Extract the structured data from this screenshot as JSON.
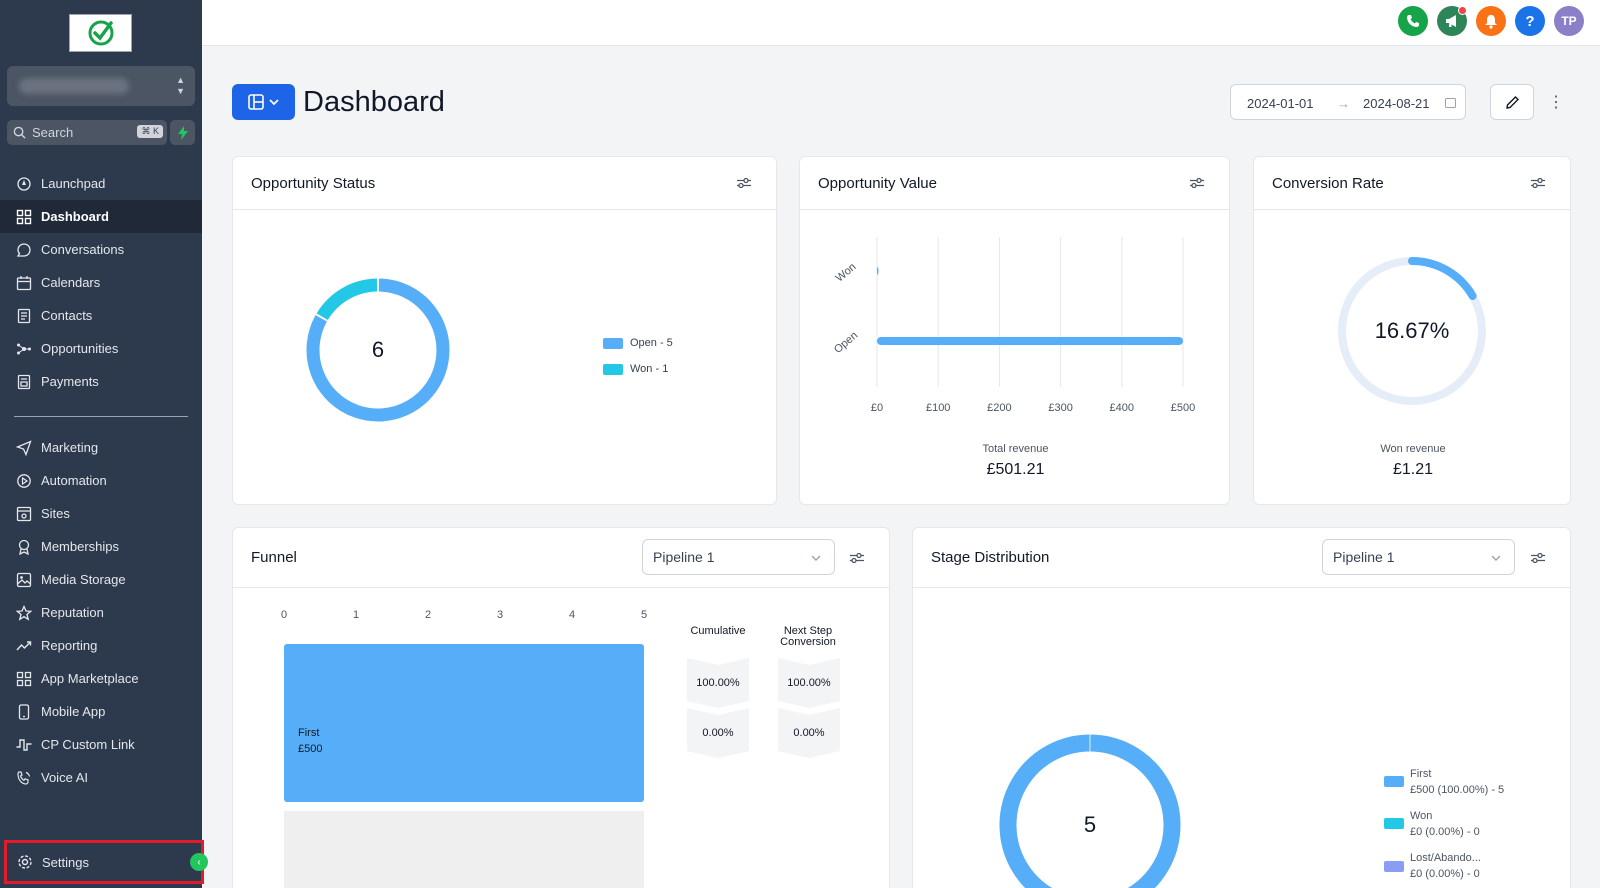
{
  "topbar": {
    "avatar_initials": "TP",
    "icons": [
      "phone-icon",
      "megaphone-icon",
      "bell-icon",
      "help-icon"
    ],
    "colors": {
      "phone": "#16a34a",
      "megaphone": "#2f855a",
      "bell": "#f97316",
      "help": "#1a73e8",
      "avatar": "#8b7fc8"
    }
  },
  "sidebar": {
    "search_placeholder": "Search",
    "search_shortcut": "⌘ K",
    "items": [
      {
        "label": "Launchpad",
        "icon": "rocket-icon"
      },
      {
        "label": "Dashboard",
        "icon": "dashboard-icon",
        "active": true
      },
      {
        "label": "Conversations",
        "icon": "chat-icon"
      },
      {
        "label": "Calendars",
        "icon": "calendar-icon"
      },
      {
        "label": "Contacts",
        "icon": "contacts-icon"
      },
      {
        "label": "Opportunities",
        "icon": "opportunities-icon"
      },
      {
        "label": "Payments",
        "icon": "payments-icon"
      },
      {
        "label": "Marketing",
        "icon": "send-icon"
      },
      {
        "label": "Automation",
        "icon": "automation-icon"
      },
      {
        "label": "Sites",
        "icon": "sites-icon"
      },
      {
        "label": "Memberships",
        "icon": "memberships-icon"
      },
      {
        "label": "Media Storage",
        "icon": "image-icon"
      },
      {
        "label": "Reputation",
        "icon": "star-icon"
      },
      {
        "label": "Reporting",
        "icon": "trend-icon"
      },
      {
        "label": "App Marketplace",
        "icon": "grid-icon"
      },
      {
        "label": "Mobile App",
        "icon": "mobile-icon"
      },
      {
        "label": "CP Custom Link",
        "icon": "pulse-icon"
      },
      {
        "label": "Voice AI",
        "icon": "voice-icon"
      }
    ],
    "settings_label": "Settings"
  },
  "header": {
    "title": "Dashboard",
    "date_start": "2024-01-01",
    "date_end": "2024-08-21"
  },
  "opportunity_status": {
    "title": "Opportunity Status",
    "total": "6",
    "legend": [
      "Open - 5",
      "Won - 1"
    ],
    "colors": {
      "open": "#55aef7",
      "won": "#23c8e6"
    }
  },
  "opportunity_value": {
    "title": "Opportunity Value",
    "total_label": "Total revenue",
    "total_value": "£501.21"
  },
  "conversion_rate": {
    "title": "Conversion Rate",
    "value": "16.67%",
    "won_label": "Won revenue",
    "won_value": "£1.21"
  },
  "funnel": {
    "title": "Funnel",
    "pipeline": "Pipeline 1",
    "stage_name": "First",
    "stage_value": "£500",
    "col_cumulative": "Cumulative",
    "col_next_step": "Next Step Conversion",
    "cumulative": [
      "100.00%",
      "0.00%"
    ],
    "next_step": [
      "100.00%",
      "0.00%"
    ]
  },
  "stage_distribution": {
    "title": "Stage Distribution",
    "pipeline": "Pipeline 1",
    "total": "5",
    "legend": [
      {
        "name": "First",
        "detail": "£500 (100.00%) - 5",
        "color": "#55aef7"
      },
      {
        "name": "Won",
        "detail": "£0 (0.00%) - 0",
        "color": "#23c8e6"
      },
      {
        "name": "Lost/Abando...",
        "detail": "£0 (0.00%) - 0",
        "color": "#8b9cf5"
      }
    ]
  },
  "chart_data": [
    {
      "type": "pie",
      "title": "Opportunity Status",
      "categories": [
        "Open",
        "Won"
      ],
      "values": [
        5,
        1
      ]
    },
    {
      "type": "bar",
      "title": "Opportunity Value",
      "orientation": "horizontal",
      "categories": [
        "Won",
        "Open"
      ],
      "values": [
        1.21,
        500
      ],
      "x_ticks": [
        "£0",
        "£100",
        "£200",
        "£300",
        "£400",
        "£500"
      ],
      "xlim": [
        0,
        500
      ],
      "xlabel": "Total revenue",
      "grid": true
    },
    {
      "type": "pie",
      "title": "Conversion Rate",
      "categories": [
        "Won",
        "Remaining"
      ],
      "values": [
        16.67,
        83.33
      ]
    },
    {
      "type": "bar",
      "title": "Funnel",
      "orientation": "horizontal",
      "categories": [
        "First"
      ],
      "values": [
        5
      ],
      "x_ticks": [
        "0",
        "1",
        "2",
        "3",
        "4",
        "5"
      ],
      "xlim": [
        0,
        5
      ]
    },
    {
      "type": "pie",
      "title": "Stage Distribution",
      "categories": [
        "First",
        "Won",
        "Lost/Abando..."
      ],
      "values": [
        5,
        0,
        0
      ]
    }
  ]
}
